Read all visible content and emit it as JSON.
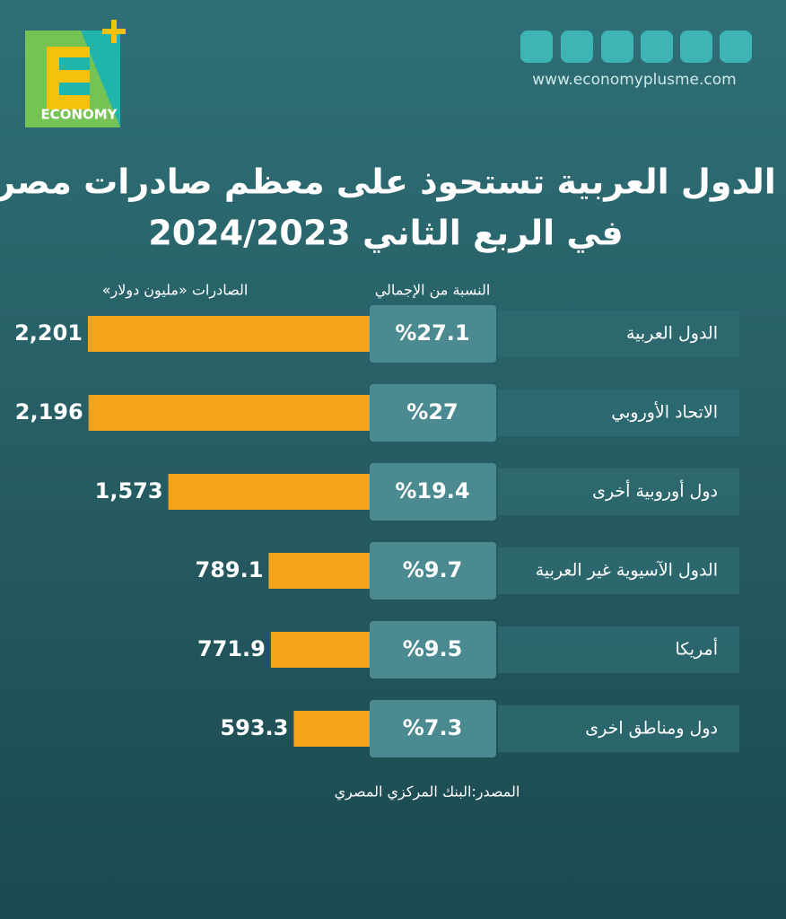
{
  "logo_text": "ECONOMY",
  "website": "www.economyplusme.com",
  "chart_data": {
    "type": "bar",
    "title": [
      "الدول العربية تستحوذ على معظم صادرات مصر",
      "في الربع الثاني 2024/2023"
    ],
    "share_header": "النسبة من الإجمالي",
    "value_header": "الصادرات «مليون دولار»",
    "categories": [
      "الدول العربية",
      "الاتحاد الأوروبي",
      "دول أوروبية أخرى",
      "الدول الآسيوية غير العربية",
      "أمريكا",
      "دول ومناطق اخرى"
    ],
    "values": [
      2201,
      2196,
      1573,
      789.1,
      771.9,
      593.3
    ],
    "value_labels": [
      "2,201",
      "2,196",
      "1,573",
      "789.1",
      "771.9",
      "593.3"
    ],
    "share_values": [
      27.1,
      27,
      19.4,
      9.7,
      9.5,
      7.3
    ],
    "share_labels": [
      "%27.1",
      "%27",
      "%19.4",
      "%9.7",
      "%9.5",
      "%7.3"
    ],
    "color": "#f7a21b",
    "source": "المصدر:البنك المركزي المصري"
  }
}
